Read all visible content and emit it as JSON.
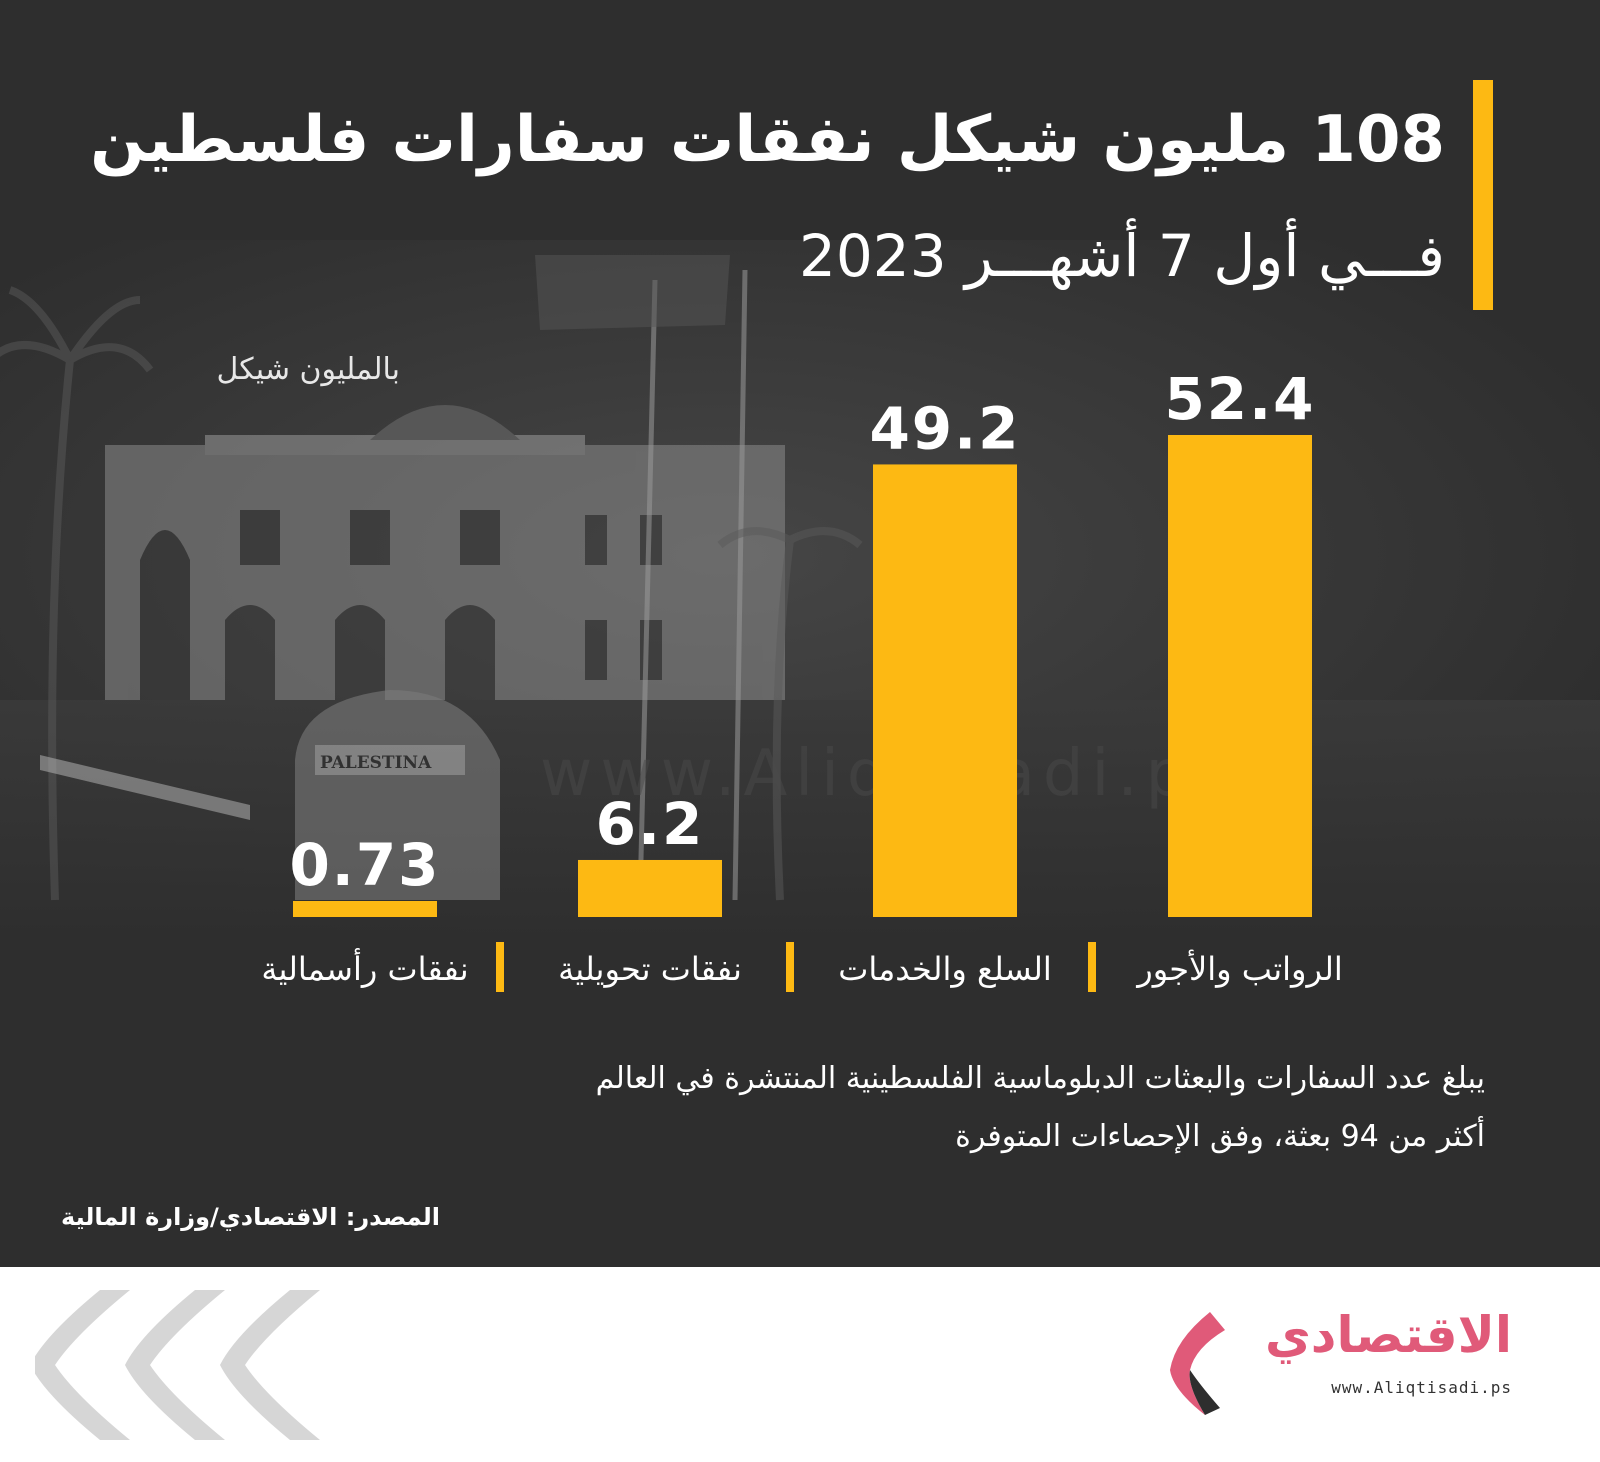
{
  "header": {
    "title": "108 مليون شيكل نفقات سفارات فلسطين",
    "subtitle": "فـــي أول 7 أشهـــر 2023"
  },
  "chart_data": {
    "type": "bar",
    "unit_label": "بالمليون شيكل",
    "categories": [
      "الرواتب والأجور",
      "السلع والخدمات",
      "نفقات تحويلية",
      "نفقات رأسمالية"
    ],
    "values": [
      52.4,
      49.2,
      6.2,
      0.73
    ],
    "value_labels": [
      "52.4",
      "49.2",
      "6.2",
      "0.73"
    ],
    "ylim": [
      0,
      52.4
    ],
    "grid": false,
    "bar_color": "#fdb913"
  },
  "note": {
    "line1": "يبلغ عدد السفارات والبعثات الدبلوماسية الفلسطينية المنتشرة في العالم",
    "line2": "أكثر من 94 بعثة، وفق الإحصاءات المتوفرة"
  },
  "source": "المصدر: الاقتصادي/وزارة المالية",
  "photo_sign": "PALESTINA",
  "watermark": "www.Aliqtisadi.ps",
  "footer": {
    "logo_name": "الاقتصادي",
    "logo_url": "www.Aliqtisadi.ps",
    "logo_color": "#e05a79"
  },
  "colors": {
    "background": "#2e2e2e",
    "accent": "#fdb913"
  }
}
